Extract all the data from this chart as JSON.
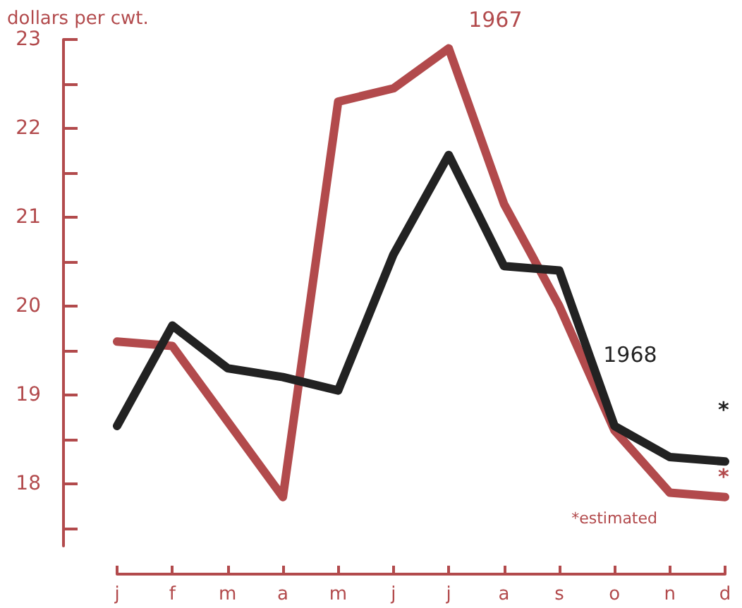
{
  "chart_data": {
    "type": "line",
    "ylabel": "dollars per cwt.",
    "categories": [
      "j",
      "f",
      "m",
      "a",
      "m",
      "j",
      "j",
      "a",
      "s",
      "o",
      "n",
      "d"
    ],
    "series": [
      {
        "name": "1967",
        "color": "#b24a4c",
        "values": [
          19.6,
          19.55,
          18.7,
          17.85,
          22.3,
          22.45,
          22.9,
          21.15,
          20.0,
          18.6,
          17.9,
          17.85
        ]
      },
      {
        "name": "1968",
        "color": "#222222",
        "values": [
          18.65,
          19.78,
          19.3,
          19.2,
          19.05,
          20.58,
          21.7,
          20.45,
          20.4,
          18.65,
          18.3,
          18.25
        ]
      }
    ],
    "ylim": [
      17.3,
      23
    ],
    "yticks": [
      {
        "value": 17.5,
        "label": null
      },
      18,
      {
        "value": 18.5,
        "label": null
      },
      19,
      {
        "value": 19.5,
        "label": null
      },
      20,
      {
        "value": 20.5,
        "label": null
      },
      21,
      {
        "value": 21.5,
        "label": null
      },
      22,
      {
        "value": 22.5,
        "label": null
      },
      23
    ],
    "annotations": [
      "*",
      "*",
      "*estimated"
    ],
    "grid": false,
    "legend": false,
    "marker": "none",
    "line_style": "solid"
  }
}
